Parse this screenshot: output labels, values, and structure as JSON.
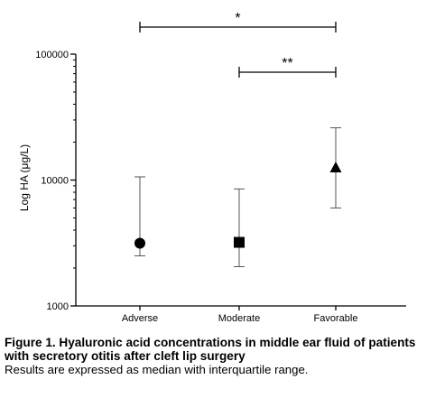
{
  "chart_data": {
    "type": "scatter",
    "ylabel": "Log HA (μg/L)",
    "yscale": "log",
    "ylim": [
      1000,
      100000
    ],
    "yticks": [
      1000,
      10000,
      100000
    ],
    "ytick_labels": [
      "1000",
      "10000",
      "100000"
    ],
    "categories": [
      "Adverse",
      "Moderate",
      "Favorable"
    ],
    "points": [
      {
        "category": "Adverse",
        "median": 3150,
        "q1": 2500,
        "q3": 10600,
        "marker": "circle"
      },
      {
        "category": "Moderate",
        "median": 3200,
        "q1": 2050,
        "q3": 8500,
        "marker": "square"
      },
      {
        "category": "Favorable",
        "median": 12500,
        "q1": 6000,
        "q3": 26000,
        "marker": "triangle"
      }
    ],
    "significance": [
      {
        "from": "Adverse",
        "to": "Favorable",
        "label": "*"
      },
      {
        "from": "Moderate",
        "to": "Favorable",
        "label": "**"
      }
    ]
  },
  "caption": {
    "title": "Figure 1. Hyaluronic acid concentrations in middle ear fluid of patients with secretory otitis after cleft lip surgery",
    "note": "Results are expressed as median with interquartile range."
  }
}
